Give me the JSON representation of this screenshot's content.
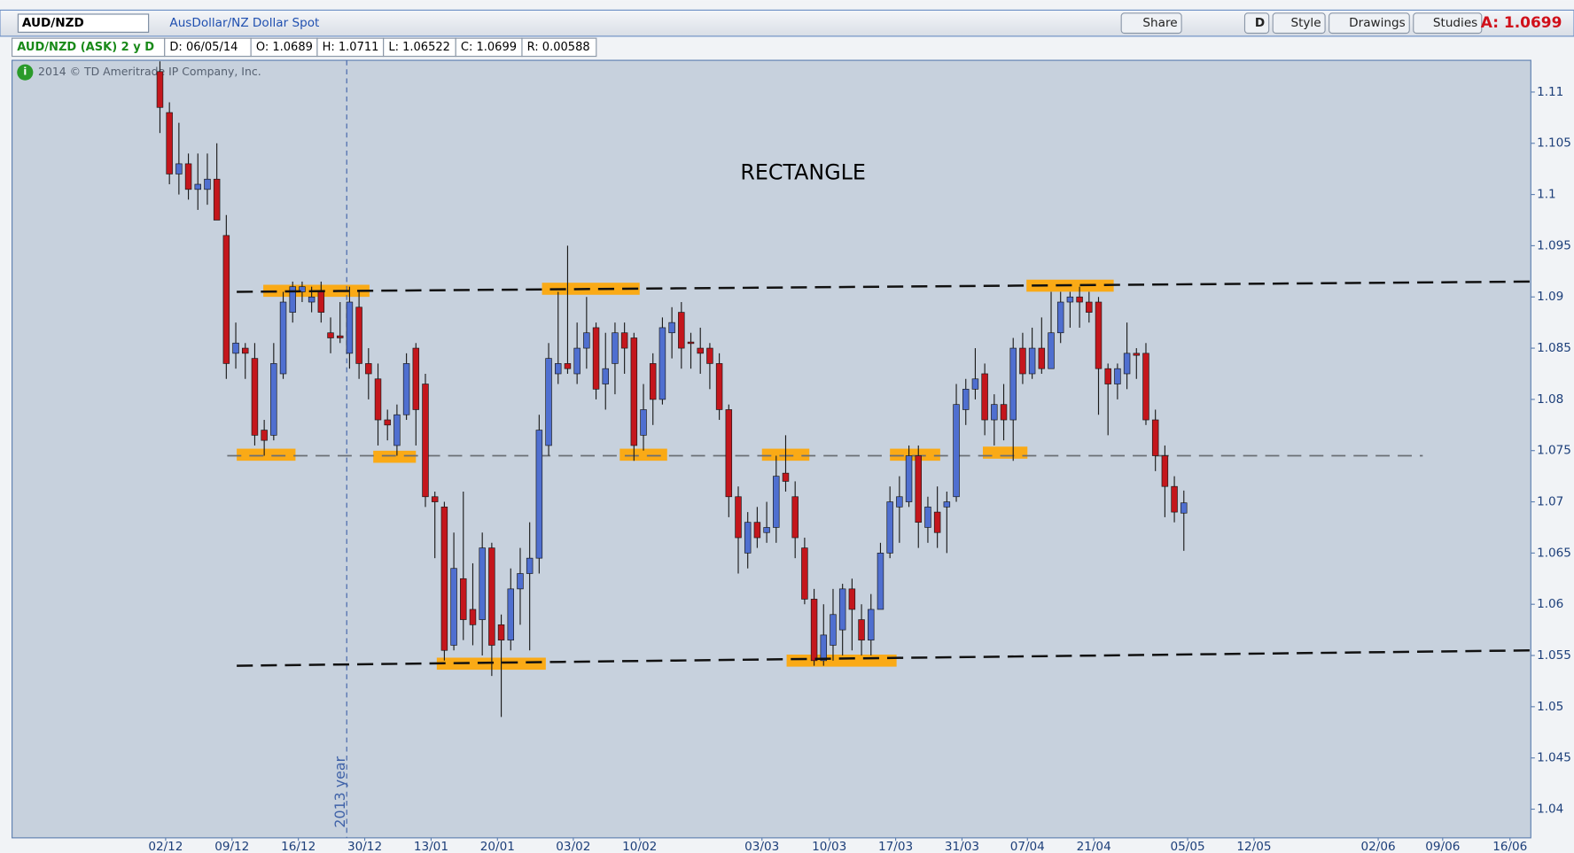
{
  "header": {
    "symbol": "AUD/NZD",
    "description": "AusDollar/NZ Dollar Spot",
    "buttons": [
      "Share",
      "D",
      "Style",
      "Drawings",
      "Studies"
    ],
    "ask": "A: 1.0699"
  },
  "info_bar": [
    "AUD/NZD (ASK) 2 y D",
    "D: 06/05/14",
    "O: 1.0689",
    "H: 1.0711",
    "L: 1.06522",
    "C: 1.0699",
    "R: 0.00588"
  ],
  "copyright": "2014 © TD Ameritrade IP Company, Inc.",
  "chart_data": {
    "type": "candlestick",
    "annotation": "RECTANGLE",
    "up_color": "#4f6fd0",
    "down_color": "#c4161c",
    "zone_color": "#ffa500",
    "open": [
      1.112,
      1.108,
      1.102,
      1.103,
      1.1005,
      1.1005,
      1.1015,
      1.096,
      1.0845,
      1.085,
      1.084,
      1.077,
      1.0765,
      1.0825,
      1.0885,
      1.0905,
      1.0895,
      1.0905,
      1.0865,
      1.0862,
      1.0845,
      1.089,
      1.0835,
      1.082,
      1.078,
      1.0755,
      1.0785,
      1.085,
      1.0815,
      1.0705,
      1.0695,
      1.056,
      1.0625,
      1.0595,
      1.0585,
      1.0655,
      1.058,
      1.0565,
      1.0615,
      1.063,
      1.0645,
      1.0755,
      1.0825,
      1.0835,
      1.0825,
      1.085,
      1.087,
      1.0815,
      1.0835,
      1.0865,
      1.086,
      1.0765,
      1.0835,
      1.08,
      1.0865,
      1.0885,
      1.0856,
      1.085,
      1.085,
      1.0835,
      1.079,
      1.0705,
      1.065,
      1.068,
      1.067,
      1.0675,
      1.0728,
      1.0705,
      1.0655,
      1.0605,
      1.0545,
      1.056,
      1.0575,
      1.0615,
      1.0585,
      1.0565,
      1.0595,
      1.065,
      1.0695,
      1.07,
      1.0745,
      1.0675,
      1.069,
      1.0695,
      1.0705,
      1.079,
      1.081,
      1.0825,
      1.078,
      1.0795,
      1.078,
      1.085,
      1.0825,
      1.085,
      1.083,
      1.0865,
      1.0895,
      1.09,
      1.0895,
      1.0895,
      1.083,
      1.0815,
      1.0825,
      1.0845,
      1.0845,
      1.078,
      1.0745,
      1.0715,
      1.0689
    ],
    "high": [
      1.113,
      1.109,
      1.107,
      1.104,
      1.104,
      1.104,
      1.105,
      1.098,
      1.0875,
      1.0855,
      1.0855,
      1.078,
      1.0855,
      1.0905,
      1.0915,
      1.0915,
      1.091,
      1.0915,
      1.088,
      1.0895,
      1.091,
      1.0905,
      1.085,
      1.0835,
      1.079,
      1.0795,
      1.0845,
      1.0855,
      1.0825,
      1.071,
      1.07,
      1.067,
      1.071,
      1.064,
      1.067,
      1.066,
      1.059,
      1.0635,
      1.0655,
      1.068,
      1.0785,
      1.0855,
      1.0905,
      1.095,
      1.0875,
      1.09,
      1.0875,
      1.0865,
      1.0875,
      1.0875,
      1.0865,
      1.0815,
      1.0845,
      1.088,
      1.089,
      1.0895,
      1.0865,
      1.087,
      1.0855,
      1.0845,
      1.0795,
      1.0715,
      1.069,
      1.0695,
      1.07,
      1.0745,
      1.0765,
      1.072,
      1.0665,
      1.0615,
      1.06,
      1.0615,
      1.062,
      1.0625,
      1.06,
      1.061,
      1.066,
      1.0715,
      1.0725,
      1.0755,
      1.0755,
      1.0705,
      1.0715,
      1.071,
      1.0815,
      1.082,
      1.085,
      1.0835,
      1.0805,
      1.0815,
      1.086,
      1.0865,
      1.087,
      1.088,
      1.0905,
      1.0905,
      1.0905,
      1.091,
      1.0905,
      1.09,
      1.0835,
      1.0835,
      1.0875,
      1.085,
      1.0855,
      1.079,
      1.0755,
      1.0725,
      1.0711
    ],
    "low": [
      1.106,
      1.101,
      1.1,
      1.0995,
      1.0985,
      1.099,
      1.0975,
      1.082,
      1.083,
      1.082,
      1.0755,
      1.0745,
      1.076,
      1.082,
      1.0875,
      1.0895,
      1.0885,
      1.0875,
      1.0845,
      1.0855,
      1.083,
      1.082,
      1.08,
      1.0755,
      1.076,
      1.0745,
      1.078,
      1.0755,
      1.0695,
      1.0645,
      1.0545,
      1.0555,
      1.0565,
      1.056,
      1.055,
      1.053,
      1.049,
      1.0555,
      1.058,
      1.0555,
      1.063,
      1.0745,
      1.0815,
      1.0825,
      1.0815,
      1.083,
      1.08,
      1.079,
      1.0805,
      1.0825,
      1.074,
      1.075,
      1.0775,
      1.0795,
      1.084,
      1.083,
      1.083,
      1.0825,
      1.081,
      1.078,
      1.0685,
      1.063,
      1.0635,
      1.0655,
      1.066,
      1.066,
      1.071,
      1.0645,
      1.06,
      1.054,
      1.054,
      1.0545,
      1.055,
      1.0555,
      1.055,
      1.055,
      1.0595,
      1.0645,
      1.066,
      1.0695,
      1.0655,
      1.066,
      1.0655,
      1.065,
      1.07,
      1.0775,
      1.08,
      1.0765,
      1.0755,
      1.076,
      1.074,
      1.0815,
      1.082,
      1.0825,
      1.083,
      1.0855,
      1.087,
      1.087,
      1.0875,
      1.0785,
      1.0765,
      1.08,
      1.081,
      1.082,
      1.0775,
      1.073,
      1.0685,
      1.068,
      1.06522
    ],
    "close": [
      1.1085,
      1.102,
      1.103,
      1.1005,
      1.101,
      1.1015,
      1.0975,
      1.0835,
      1.0855,
      1.0845,
      1.0765,
      1.076,
      1.0835,
      1.0895,
      1.091,
      1.091,
      1.09,
      1.0885,
      1.086,
      1.086,
      1.0895,
      1.0835,
      1.0825,
      1.078,
      1.0775,
      1.0785,
      1.0835,
      1.079,
      1.0705,
      1.07,
      1.0555,
      1.0635,
      1.0585,
      1.058,
      1.0655,
      1.056,
      1.0565,
      1.0615,
      1.063,
      1.0645,
      1.077,
      1.084,
      1.0835,
      1.083,
      1.085,
      1.0865,
      1.081,
      1.083,
      1.0865,
      1.085,
      1.0755,
      1.079,
      1.08,
      1.087,
      1.0875,
      1.085,
      1.0855,
      1.0845,
      1.0835,
      1.079,
      1.0705,
      1.0665,
      1.068,
      1.0665,
      1.0675,
      1.0725,
      1.072,
      1.0665,
      1.0605,
      1.0545,
      1.057,
      1.059,
      1.0615,
      1.0595,
      1.0565,
      1.0595,
      1.065,
      1.07,
      1.0705,
      1.0745,
      1.068,
      1.0695,
      1.067,
      1.07,
      1.0795,
      1.081,
      1.082,
      1.078,
      1.0795,
      1.078,
      1.085,
      1.0825,
      1.085,
      1.083,
      1.0865,
      1.0895,
      1.09,
      1.0895,
      1.0885,
      1.083,
      1.0815,
      1.083,
      1.0845,
      1.0843,
      1.078,
      1.0745,
      1.0715,
      1.069,
      1.0699
    ],
    "xlim": [
      -15.6,
      144.6
    ],
    "xticks": [
      {
        "value": 0.6,
        "label": "02/12"
      },
      {
        "value": 7.6,
        "label": "09/12"
      },
      {
        "value": 14.6,
        "label": "16/12"
      },
      {
        "value": 21.6,
        "label": "30/12"
      },
      {
        "value": 28.6,
        "label": "13/01"
      },
      {
        "value": 35.6,
        "label": "20/01"
      },
      {
        "value": 43.6,
        "label": "03/02"
      },
      {
        "value": 50.6,
        "label": "10/02"
      },
      {
        "value": 63.5,
        "label": "03/03"
      },
      {
        "value": 70.6,
        "label": "10/03"
      },
      {
        "value": 77.6,
        "label": "17/03"
      },
      {
        "value": 84.6,
        "label": "31/03"
      },
      {
        "value": 91.5,
        "label": "07/04"
      },
      {
        "value": 98.5,
        "label": "21/04"
      },
      {
        "value": 108.4,
        "label": "05/05"
      },
      {
        "value": 115.4,
        "label": "12/05"
      },
      {
        "value": 128.5,
        "label": "02/06"
      },
      {
        "value": 135.3,
        "label": "09/06"
      },
      {
        "value": 142.4,
        "label": "16/06"
      }
    ],
    "ylim": [
      1.0372,
      1.1131
    ],
    "yticks": [
      1.04,
      1.045,
      1.05,
      1.055,
      1.06,
      1.065,
      1.07,
      1.075,
      1.08,
      1.085,
      1.09,
      1.095,
      1.1,
      1.105,
      1.11
    ],
    "trend_lines": [
      {
        "x": [
          8.1,
          144.6
        ],
        "y": [
          1.0905,
          1.0915
        ]
      },
      {
        "x": [
          8.1,
          144.6
        ],
        "y": [
          1.054,
          1.0555
        ]
      }
    ],
    "mid_line": {
      "x": [
        7.1,
        133.2
      ],
      "y": 1.0745
    },
    "zones": [
      {
        "x": [
          10.9,
          22.1
        ],
        "y": 1.0906
      },
      {
        "x": [
          8.1,
          14.3
        ],
        "y": 1.0746
      },
      {
        "x": [
          22.5,
          27.0
        ],
        "y": 1.0744
      },
      {
        "x": [
          40.3,
          50.6
        ],
        "y": 1.0908
      },
      {
        "x": [
          48.5,
          53.5
        ],
        "y": 1.0746
      },
      {
        "x": [
          29.2,
          40.7
        ],
        "y": 1.0542
      },
      {
        "x": [
          63.5,
          68.5
        ],
        "y": 1.0746
      },
      {
        "x": [
          66.1,
          77.7
        ],
        "y": 1.0545
      },
      {
        "x": [
          77.0,
          82.3
        ],
        "y": 1.0746
      },
      {
        "x": [
          86.8,
          91.5
        ],
        "y": 1.0748
      },
      {
        "x": [
          91.4,
          100.6
        ],
        "y": 1.0911
      }
    ],
    "year_line": {
      "x": 19.7,
      "label": "2013 year"
    }
  }
}
